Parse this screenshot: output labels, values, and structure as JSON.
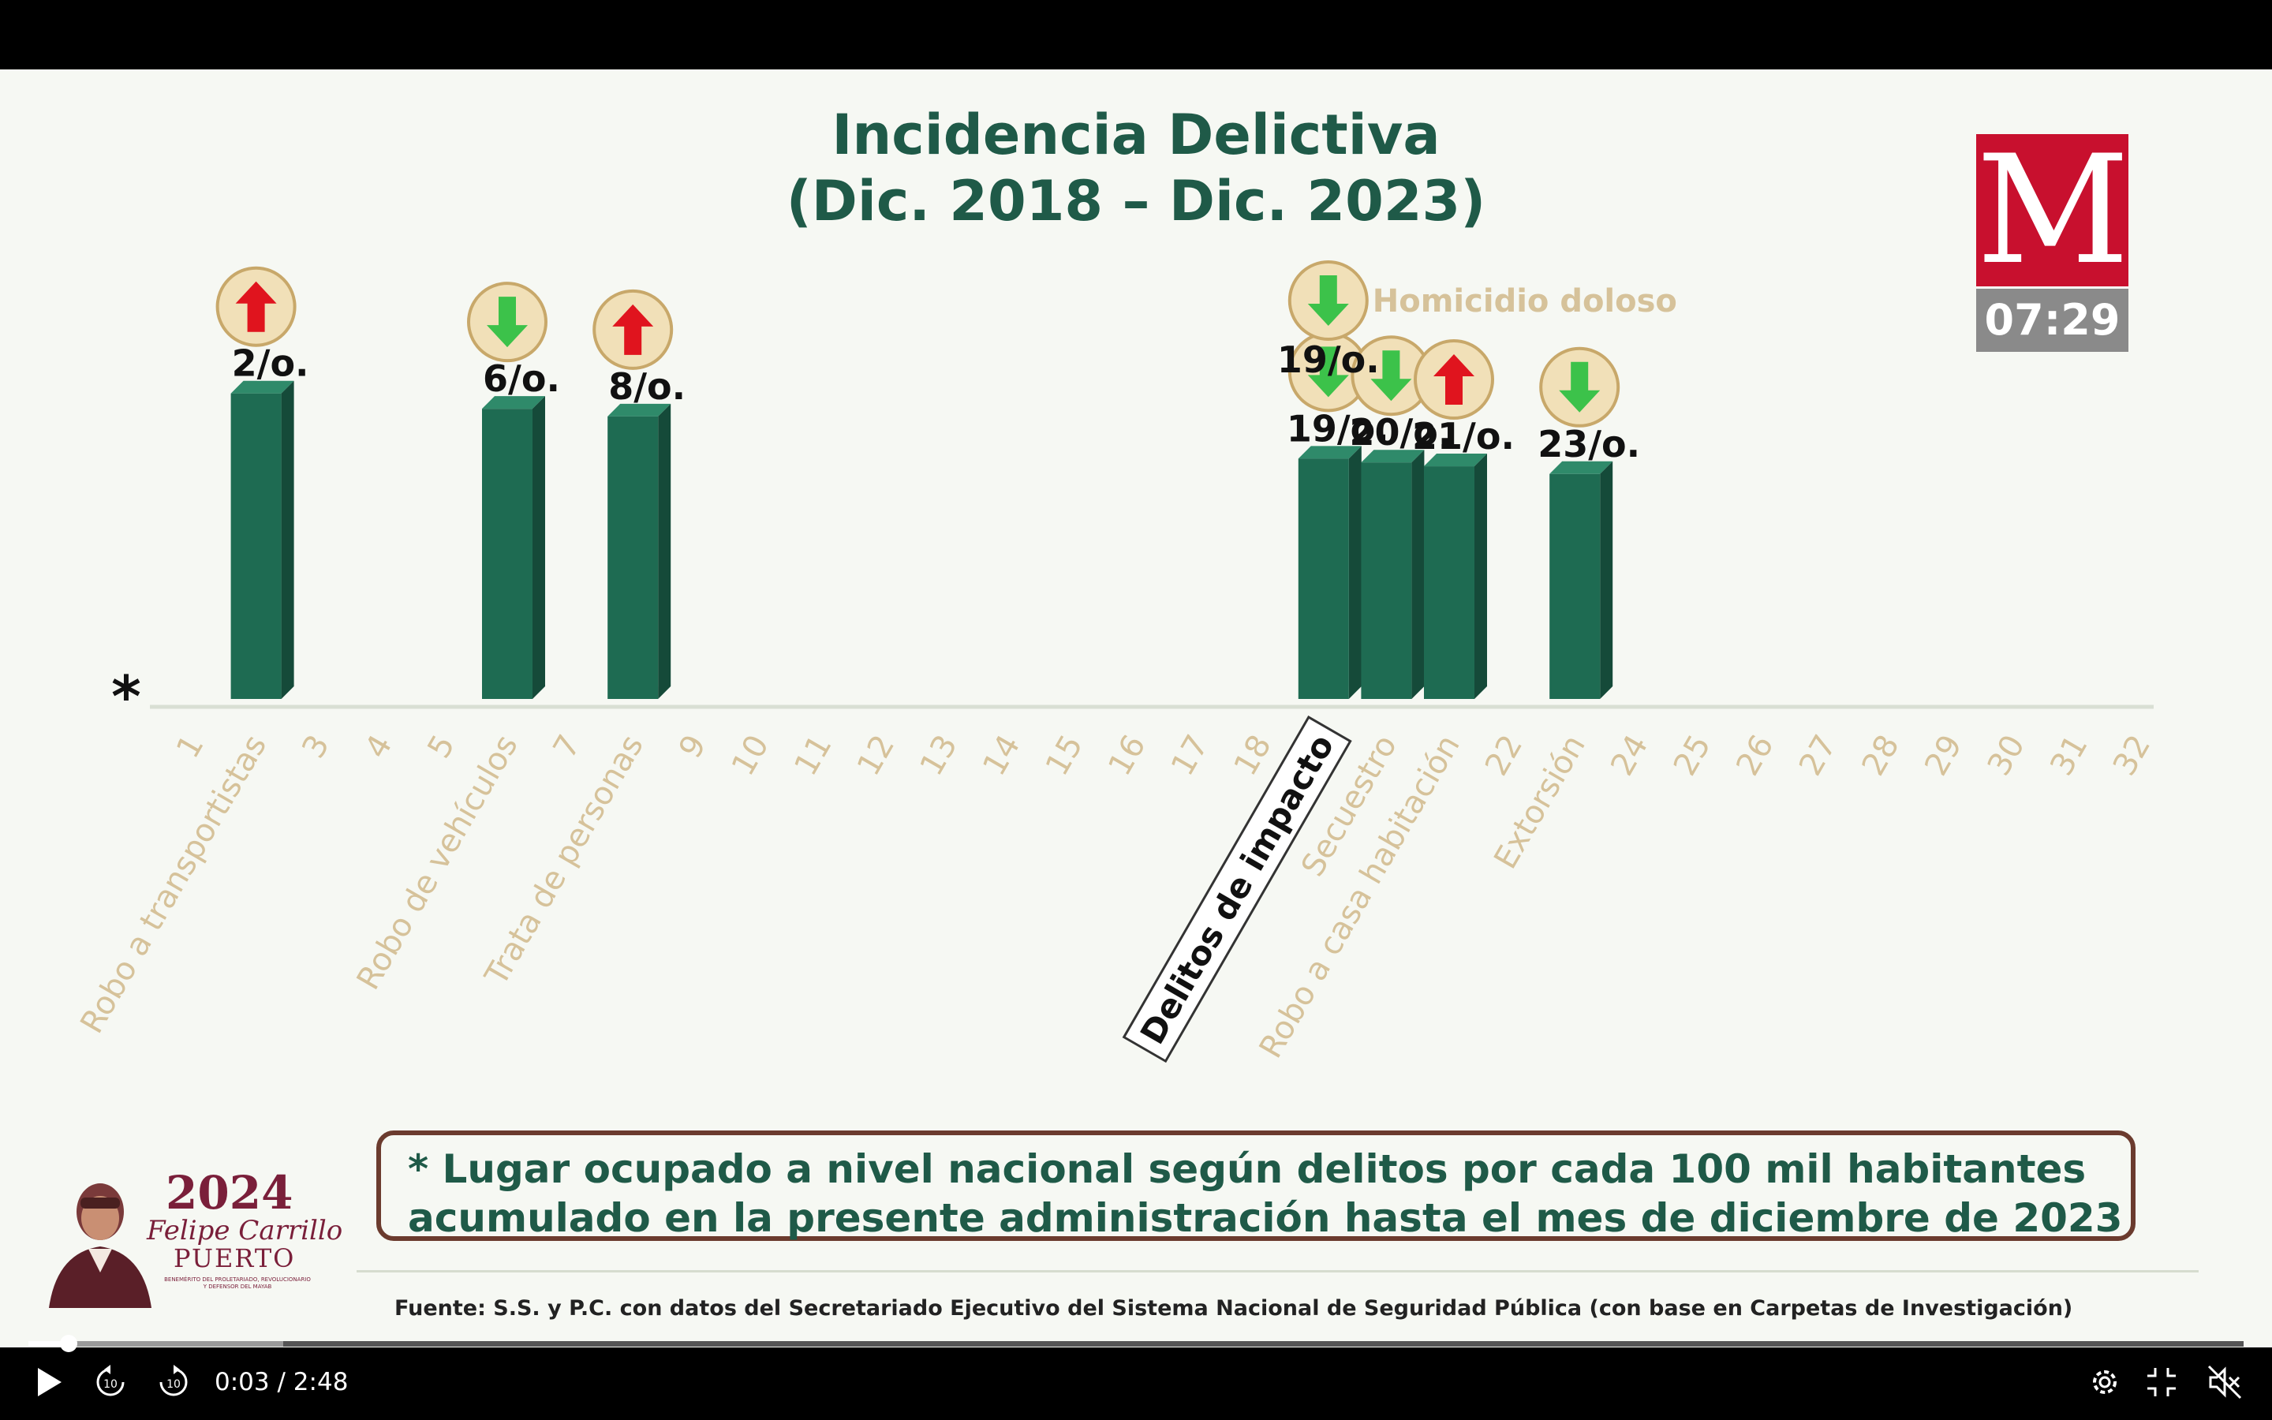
{
  "window": {
    "title_line1": "Incidencia Delictiva",
    "title_line2": "(Dic. 2018 – Dic. 2023)"
  },
  "broadcaster": {
    "logo_letter": "M",
    "clock": "07:29",
    "logo_color": "#c8102e"
  },
  "chart_data": {
    "type": "bar",
    "baseline_marker": "*",
    "categories": [
      "1",
      "Robo a transportistas",
      "3",
      "4",
      "5",
      "Robo de vehículos",
      "7",
      "Trata de personas",
      "9",
      "10",
      "11",
      "12",
      "13",
      "14",
      "15",
      "16",
      "17",
      "18",
      "Delitos de impacto",
      "Secuestro",
      "Robo a casa habitación",
      "22",
      "Extorsión",
      "24",
      "25",
      "26",
      "27",
      "28",
      "29",
      "30",
      "31",
      "32"
    ],
    "highlight_labels": [
      "Robo a transportistas",
      "Robo de vehículos",
      "Trata de personas",
      "Delitos de impacto",
      "Secuestro",
      "Robo a casa habitación",
      "Extorsión"
    ],
    "boxed_label": "Delitos de impacto",
    "values": [
      null,
      2,
      null,
      null,
      null,
      6,
      null,
      8,
      null,
      null,
      null,
      null,
      null,
      null,
      null,
      null,
      null,
      null,
      19,
      20,
      21,
      null,
      23,
      null,
      null,
      null,
      null,
      null,
      null,
      null,
      null,
      null
    ],
    "data_labels": {
      "2": "2/o.",
      "6": "6/o.",
      "8": "8/o.",
      "19": "19/o.",
      "20": "20/o.",
      "21": "21/o.",
      "23": "23/o."
    },
    "trends": [
      {
        "rank": 2,
        "direction": "up"
      },
      {
        "rank": 6,
        "direction": "down"
      },
      {
        "rank": 8,
        "direction": "up"
      },
      {
        "rank": 19,
        "direction": "down"
      },
      {
        "rank": 20,
        "direction": "down"
      },
      {
        "rank": 21,
        "direction": "up"
      },
      {
        "rank": 23,
        "direction": "down"
      }
    ],
    "annotation": {
      "label": "Homicidio doloso",
      "value_label": "19/o.",
      "direction": "down"
    },
    "colors": {
      "bar": "#1e6b52",
      "up": "#e0141e",
      "down": "#3cc24a",
      "muted_label": "#d6c29a",
      "label": "#111111"
    }
  },
  "footnote": {
    "line1": "* Lugar ocupado a nivel nacional según delitos por cada 100 mil habitantes",
    "line2": "acumulado en la presente administración hasta el mes de diciembre de 2023"
  },
  "source": "Fuente: S.S. y P.C. con datos del Secretariado Ejecutivo del Sistema Nacional de Seguridad Pública (con base en Carpetas de Investigación)",
  "branding": {
    "year": "2024",
    "name": "Felipe Carrillo",
    "name2": "PUERTO",
    "subtitle": "BENEMÉRITO DEL PROLETARIADO, REVOLUCIONARIO Y DEFENSOR DEL MAYAB"
  },
  "player": {
    "current_time": "0:03",
    "separator": "/",
    "duration": "2:48",
    "progress": 0.018,
    "buffered": 0.115,
    "icons": [
      "play-icon",
      "rewind-10-icon",
      "forward-10-icon",
      "settings-icon",
      "exit-fullscreen-icon",
      "muted-icon"
    ]
  }
}
